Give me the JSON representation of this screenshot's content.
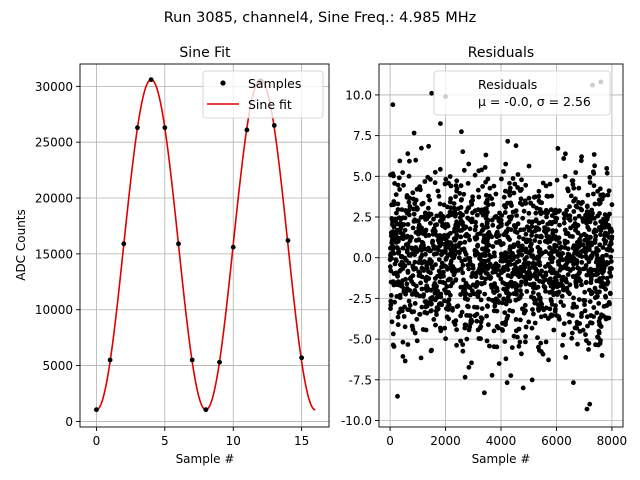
{
  "suptitle": "Run 3085, channel4, Sine Freq.: 4.985 MHz",
  "colors": {
    "samples": "#000000",
    "fit": "#e00000",
    "grid": "#b0b0b0",
    "residuals": "#000000"
  },
  "chart_data": [
    {
      "type": "line",
      "title": "Sine Fit",
      "xlabel": "Sample #",
      "ylabel": "ADC Counts",
      "xlim": [
        -1.2,
        17.0
      ],
      "ylim": [
        -500,
        32000
      ],
      "xticks": [
        0,
        5,
        10,
        15
      ],
      "yticks": [
        0,
        5000,
        10000,
        15000,
        20000,
        25000,
        30000
      ],
      "grid": true,
      "legend": {
        "position": "top-right",
        "entries": [
          "Samples",
          "Sine fit"
        ]
      },
      "series": [
        {
          "name": "Samples",
          "style": "markers",
          "x": [
            0,
            1,
            2,
            3,
            4,
            5,
            6,
            7,
            8,
            9,
            10,
            11,
            12,
            13,
            14,
            15
          ],
          "y": [
            1050,
            5500,
            15900,
            26300,
            30600,
            26300,
            15900,
            5500,
            1050,
            5300,
            15600,
            26100,
            30500,
            26500,
            16200,
            5700
          ]
        },
        {
          "name": "Sine fit",
          "style": "line",
          "model": {
            "offset": 15825,
            "amplitude": 14790,
            "period": 8.0,
            "phase_peak_x": 4.0
          },
          "x_range": [
            0,
            16
          ]
        }
      ]
    },
    {
      "type": "scatter",
      "title": "Residuals",
      "xlabel": "Sample #",
      "ylabel": "",
      "xlim": [
        -400,
        8400
      ],
      "ylim": [
        -10.4,
        11.9
      ],
      "xticks": [
        0,
        2000,
        4000,
        6000,
        8000
      ],
      "yticks": [
        -10.0,
        -7.5,
        -5.0,
        -2.5,
        0.0,
        2.5,
        5.0,
        7.5,
        10.0
      ],
      "grid": true,
      "legend": {
        "position": "top-right",
        "entries": [
          "Residuals",
          "μ = -0.0, σ = 2.56"
        ]
      },
      "series": [
        {
          "name": "Residuals",
          "n_points": 8000,
          "mean": -0.0,
          "std": 2.56,
          "x_range": [
            0,
            8000
          ],
          "y_range": [
            -9.3,
            10.8
          ],
          "notable_points": [
            {
              "x": 100,
              "y": 9.4
            },
            {
              "x": 1500,
              "y": 10.1
            },
            {
              "x": 2000,
              "y": 9.9
            },
            {
              "x": 7300,
              "y": 10.6
            },
            {
              "x": 7600,
              "y": 10.8
            },
            {
              "x": 7100,
              "y": -9.3
            },
            {
              "x": 7200,
              "y": -9.0
            },
            {
              "x": 3400,
              "y": -8.3
            },
            {
              "x": 4800,
              "y": -8.0
            }
          ]
        }
      ]
    }
  ]
}
